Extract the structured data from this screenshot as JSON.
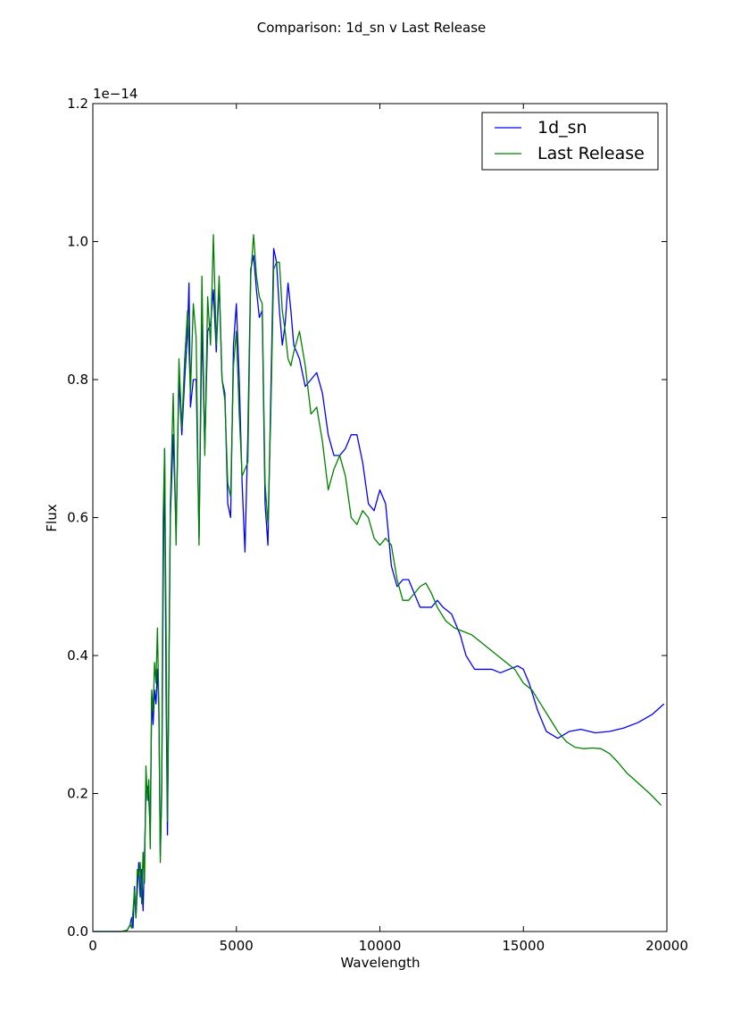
{
  "chart_data": {
    "type": "line",
    "title": "Comparison: 1d_sn v Last Release",
    "xlabel": "Wavelength",
    "ylabel": "Flux",
    "offset_label": "1e−14",
    "xlim": [
      0,
      20000
    ],
    "ylim": [
      0,
      1.2
    ],
    "x_ticks": [
      0,
      5000,
      10000,
      15000,
      20000
    ],
    "x_tick_labels": [
      "0",
      "5000",
      "10000",
      "15000",
      "20000"
    ],
    "y_ticks": [
      0,
      0.2,
      0.4,
      0.6,
      0.8,
      1.0,
      1.2
    ],
    "y_tick_labels": [
      "0.0",
      "0.2",
      "0.4",
      "0.6",
      "0.8",
      "1.0",
      "1.2"
    ],
    "grid": false,
    "legend_position": "top-right",
    "series": [
      {
        "name": "1d_sn",
        "color": "#0000ff",
        "points": [
          [
            0,
            0
          ],
          [
            1000,
            0
          ],
          [
            1200,
            0.002
          ],
          [
            1300,
            0.01
          ],
          [
            1350,
            0.02
          ],
          [
            1400,
            0.005
          ],
          [
            1450,
            0.065
          ],
          [
            1500,
            0.02
          ],
          [
            1550,
            0.06
          ],
          [
            1600,
            0.1
          ],
          [
            1650,
            0.05
          ],
          [
            1700,
            0.09
          ],
          [
            1750,
            0.03
          ],
          [
            1800,
            0.11
          ],
          [
            1850,
            0.2
          ],
          [
            1900,
            0.21
          ],
          [
            1950,
            0.19
          ],
          [
            2000,
            0.15
          ],
          [
            2050,
            0.34
          ],
          [
            2100,
            0.3
          ],
          [
            2150,
            0.35
          ],
          [
            2200,
            0.33
          ],
          [
            2250,
            0.38
          ],
          [
            2300,
            0.32
          ],
          [
            2350,
            0.11
          ],
          [
            2400,
            0.2
          ],
          [
            2450,
            0.5
          ],
          [
            2500,
            0.7
          ],
          [
            2550,
            0.35
          ],
          [
            2600,
            0.14
          ],
          [
            2700,
            0.6
          ],
          [
            2800,
            0.72
          ],
          [
            2900,
            0.58
          ],
          [
            3000,
            0.8
          ],
          [
            3100,
            0.72
          ],
          [
            3200,
            0.8
          ],
          [
            3300,
            0.87
          ],
          [
            3350,
            0.94
          ],
          [
            3400,
            0.76
          ],
          [
            3500,
            0.8
          ],
          [
            3600,
            0.8
          ],
          [
            3700,
            0.57
          ],
          [
            3800,
            0.88
          ],
          [
            3900,
            0.7
          ],
          [
            4000,
            0.87
          ],
          [
            4100,
            0.88
          ],
          [
            4200,
            0.93
          ],
          [
            4300,
            0.84
          ],
          [
            4400,
            0.94
          ],
          [
            4500,
            0.8
          ],
          [
            4600,
            0.78
          ],
          [
            4700,
            0.62
          ],
          [
            4800,
            0.6
          ],
          [
            4900,
            0.85
          ],
          [
            5000,
            0.91
          ],
          [
            5100,
            0.8
          ],
          [
            5200,
            0.65
          ],
          [
            5300,
            0.55
          ],
          [
            5400,
            0.72
          ],
          [
            5500,
            0.96
          ],
          [
            5600,
            0.98
          ],
          [
            5700,
            0.93
          ],
          [
            5800,
            0.89
          ],
          [
            5900,
            0.9
          ],
          [
            6000,
            0.62
          ],
          [
            6100,
            0.56
          ],
          [
            6200,
            0.78
          ],
          [
            6300,
            0.99
          ],
          [
            6400,
            0.97
          ],
          [
            6500,
            0.9
          ],
          [
            6600,
            0.85
          ],
          [
            6700,
            0.88
          ],
          [
            6800,
            0.94
          ],
          [
            6900,
            0.9
          ],
          [
            7000,
            0.85
          ],
          [
            7200,
            0.83
          ],
          [
            7400,
            0.79
          ],
          [
            7600,
            0.8
          ],
          [
            7800,
            0.81
          ],
          [
            8000,
            0.78
          ],
          [
            8200,
            0.72
          ],
          [
            8400,
            0.69
          ],
          [
            8600,
            0.69
          ],
          [
            8800,
            0.7
          ],
          [
            9000,
            0.72
          ],
          [
            9200,
            0.72
          ],
          [
            9400,
            0.68
          ],
          [
            9600,
            0.62
          ],
          [
            9800,
            0.61
          ],
          [
            10000,
            0.64
          ],
          [
            10200,
            0.62
          ],
          [
            10400,
            0.53
          ],
          [
            10600,
            0.5
          ],
          [
            10800,
            0.51
          ],
          [
            11000,
            0.51
          ],
          [
            11200,
            0.49
          ],
          [
            11400,
            0.47
          ],
          [
            11600,
            0.47
          ],
          [
            11800,
            0.47
          ],
          [
            12000,
            0.48
          ],
          [
            12200,
            0.47
          ],
          [
            12500,
            0.46
          ],
          [
            12800,
            0.43
          ],
          [
            13000,
            0.4
          ],
          [
            13300,
            0.38
          ],
          [
            13600,
            0.38
          ],
          [
            13900,
            0.38
          ],
          [
            14200,
            0.375
          ],
          [
            14500,
            0.38
          ],
          [
            14800,
            0.385
          ],
          [
            15000,
            0.38
          ],
          [
            15200,
            0.36
          ],
          [
            15500,
            0.32
          ],
          [
            15800,
            0.29
          ],
          [
            16200,
            0.28
          ],
          [
            16600,
            0.29
          ],
          [
            17000,
            0.293
          ],
          [
            17500,
            0.288
          ],
          [
            18000,
            0.29
          ],
          [
            18500,
            0.295
          ],
          [
            19000,
            0.303
          ],
          [
            19500,
            0.315
          ],
          [
            19900,
            0.33
          ]
        ]
      },
      {
        "name": "Last Release",
        "color": "#008000",
        "points": [
          [
            0,
            0
          ],
          [
            1000,
            0
          ],
          [
            1200,
            0.002
          ],
          [
            1300,
            0.01
          ],
          [
            1350,
            0.005
          ],
          [
            1400,
            0.03
          ],
          [
            1450,
            0.06
          ],
          [
            1500,
            0.02
          ],
          [
            1550,
            0.09
          ],
          [
            1600,
            0.08
          ],
          [
            1650,
            0.1
          ],
          [
            1700,
            0.04
          ],
          [
            1750,
            0.115
          ],
          [
            1800,
            0.07
          ],
          [
            1850,
            0.24
          ],
          [
            1900,
            0.19
          ],
          [
            1950,
            0.22
          ],
          [
            2000,
            0.12
          ],
          [
            2050,
            0.35
          ],
          [
            2100,
            0.32
          ],
          [
            2150,
            0.39
          ],
          [
            2200,
            0.36
          ],
          [
            2250,
            0.44
          ],
          [
            2300,
            0.33
          ],
          [
            2350,
            0.1
          ],
          [
            2400,
            0.22
          ],
          [
            2450,
            0.6
          ],
          [
            2500,
            0.7
          ],
          [
            2550,
            0.45
          ],
          [
            2600,
            0.16
          ],
          [
            2700,
            0.62
          ],
          [
            2800,
            0.78
          ],
          [
            2900,
            0.56
          ],
          [
            3000,
            0.83
          ],
          [
            3100,
            0.73
          ],
          [
            3200,
            0.83
          ],
          [
            3300,
            0.9
          ],
          [
            3400,
            0.78
          ],
          [
            3500,
            0.91
          ],
          [
            3600,
            0.86
          ],
          [
            3700,
            0.56
          ],
          [
            3800,
            0.95
          ],
          [
            3900,
            0.69
          ],
          [
            4000,
            0.92
          ],
          [
            4100,
            0.85
          ],
          [
            4200,
            1.01
          ],
          [
            4300,
            0.85
          ],
          [
            4400,
            0.95
          ],
          [
            4500,
            0.8
          ],
          [
            4600,
            0.77
          ],
          [
            4700,
            0.65
          ],
          [
            4800,
            0.63
          ],
          [
            4900,
            0.82
          ],
          [
            5000,
            0.87
          ],
          [
            5100,
            0.75
          ],
          [
            5200,
            0.66
          ],
          [
            5300,
            0.67
          ],
          [
            5400,
            0.68
          ],
          [
            5500,
            0.95
          ],
          [
            5600,
            1.01
          ],
          [
            5700,
            0.95
          ],
          [
            5800,
            0.92
          ],
          [
            5900,
            0.91
          ],
          [
            6000,
            0.65
          ],
          [
            6100,
            0.59
          ],
          [
            6200,
            0.75
          ],
          [
            6300,
            0.96
          ],
          [
            6400,
            0.97
          ],
          [
            6500,
            0.97
          ],
          [
            6600,
            0.9
          ],
          [
            6700,
            0.87
          ],
          [
            6800,
            0.83
          ],
          [
            6900,
            0.82
          ],
          [
            7000,
            0.84
          ],
          [
            7200,
            0.87
          ],
          [
            7400,
            0.82
          ],
          [
            7600,
            0.75
          ],
          [
            7800,
            0.76
          ],
          [
            8000,
            0.71
          ],
          [
            8200,
            0.64
          ],
          [
            8400,
            0.67
          ],
          [
            8600,
            0.69
          ],
          [
            8800,
            0.66
          ],
          [
            9000,
            0.6
          ],
          [
            9200,
            0.59
          ],
          [
            9400,
            0.61
          ],
          [
            9600,
            0.6
          ],
          [
            9800,
            0.57
          ],
          [
            10000,
            0.56
          ],
          [
            10200,
            0.57
          ],
          [
            10400,
            0.56
          ],
          [
            10600,
            0.51
          ],
          [
            10800,
            0.48
          ],
          [
            11000,
            0.48
          ],
          [
            11200,
            0.49
          ],
          [
            11400,
            0.5
          ],
          [
            11600,
            0.505
          ],
          [
            11800,
            0.49
          ],
          [
            12000,
            0.47
          ],
          [
            12300,
            0.45
          ],
          [
            12600,
            0.44
          ],
          [
            12900,
            0.435
          ],
          [
            13200,
            0.43
          ],
          [
            13500,
            0.42
          ],
          [
            13800,
            0.41
          ],
          [
            14100,
            0.4
          ],
          [
            14400,
            0.39
          ],
          [
            14700,
            0.38
          ],
          [
            15000,
            0.36
          ],
          [
            15300,
            0.35
          ],
          [
            15600,
            0.33
          ],
          [
            15900,
            0.31
          ],
          [
            16200,
            0.29
          ],
          [
            16500,
            0.275
          ],
          [
            16800,
            0.267
          ],
          [
            17100,
            0.265
          ],
          [
            17400,
            0.266
          ],
          [
            17700,
            0.265
          ],
          [
            18000,
            0.258
          ],
          [
            18300,
            0.245
          ],
          [
            18600,
            0.23
          ],
          [
            19000,
            0.215
          ],
          [
            19400,
            0.2
          ],
          [
            19800,
            0.183
          ]
        ]
      }
    ]
  }
}
